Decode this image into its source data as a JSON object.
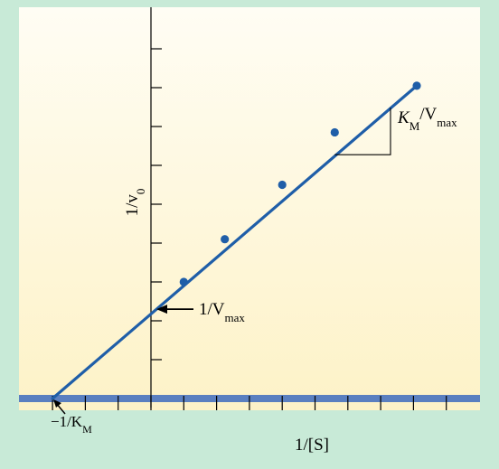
{
  "chart_data": {
    "type": "line",
    "title": "",
    "xlabel": "1/[S]",
    "ylabel": "1/v0",
    "series": [
      {
        "x": [
          1.0,
          2.25,
          4.0,
          5.6,
          8.1
        ],
        "y": [
          3.0,
          4.1,
          5.5,
          6.85,
          8.05
        ]
      }
    ],
    "fit_line": {
      "x_intercept": -3.0,
      "y_intercept": 2.3,
      "x_end": 8.1,
      "y_end": 8.05
    },
    "xlim": [
      -3.2,
      9.2
    ],
    "ylim": [
      0,
      9.4
    ],
    "x_ticks": [
      -3,
      -2,
      -1,
      0,
      1,
      2,
      3,
      4,
      5,
      6,
      7,
      8,
      9
    ],
    "y_ticks": [
      1,
      2,
      3,
      4,
      5,
      6,
      7,
      8,
      9
    ],
    "annotations": {
      "x_intercept_label": "−1/K",
      "x_intercept_label_sub": "M",
      "y_intercept_label": "1/V",
      "y_intercept_label_sub": "max",
      "slope_label_k": "K",
      "slope_label_k_sub": "M",
      "slope_label_sep": "/V",
      "slope_label_v_sub": "max"
    },
    "ylabel_parts": {
      "main": "1/v",
      "sub": "0"
    },
    "colors": {
      "line": "#1f5ea8",
      "point": "#1f5ea8",
      "axis_band": "#5a7fc0",
      "plot_top": "#fffdf4",
      "plot_bottom": "#fdf2c7",
      "page_background": "#c8ead7"
    }
  }
}
